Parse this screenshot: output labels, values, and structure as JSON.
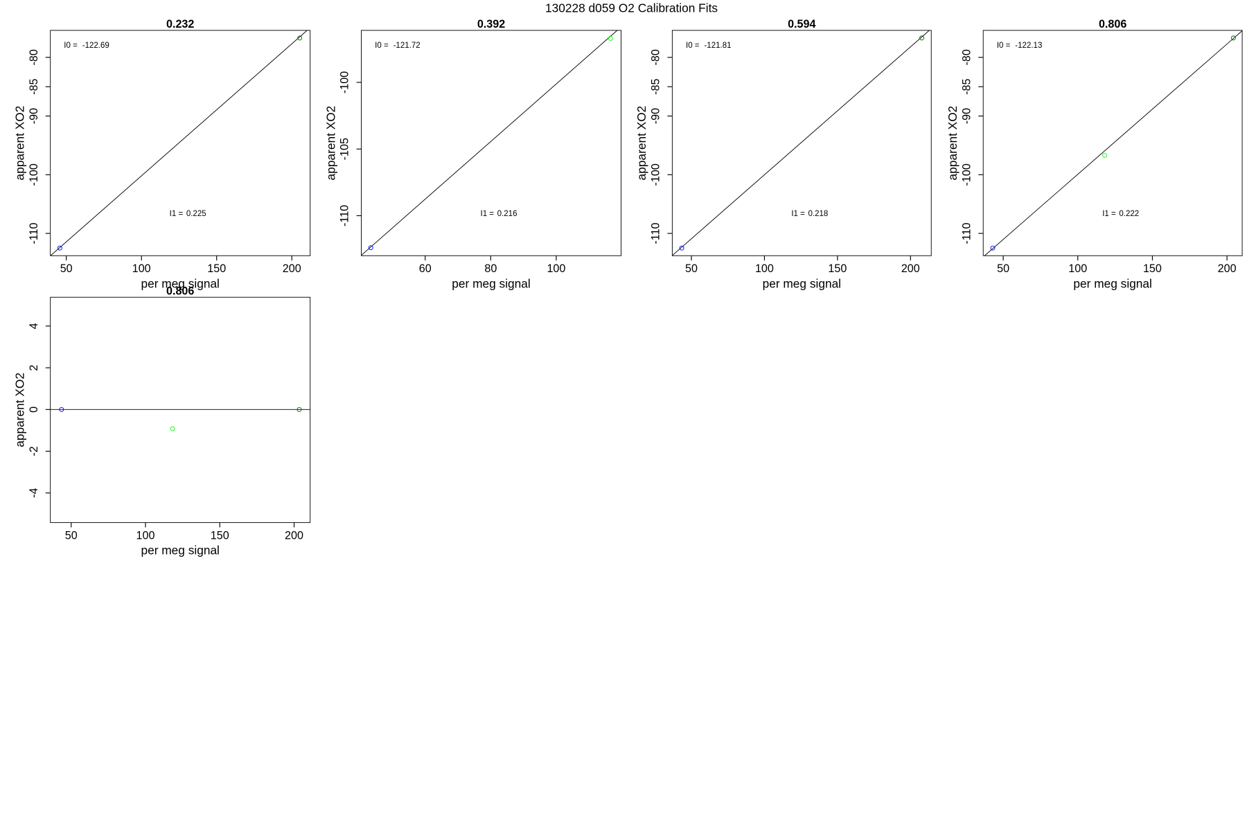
{
  "title": "130228   d059   O2 Calibration Fits",
  "chart_data": [
    {
      "type": "scatter",
      "title": "0.232",
      "x_label": "per meg signal",
      "y_label": "apparent XO2",
      "x": [
        45.7,
        205.3
      ],
      "values": [
        -112.5,
        -76.7
      ],
      "point_colors": [
        "#0000ff",
        "#006400"
      ],
      "fit": {
        "intercept_label": "I0 =",
        "intercept": -122.69,
        "slope_label": "I1 =",
        "slope": 0.225
      },
      "xlim": [
        39.4,
        212.2
      ],
      "xticks": [
        50,
        100,
        150,
        200
      ],
      "ylim": [
        -113.8,
        -75.4
      ],
      "yticks": [
        -80,
        -85,
        -90,
        -100,
        -110
      ]
    },
    {
      "type": "scatter",
      "title": "0.392",
      "x_label": "per meg signal",
      "y_label": "apparent XO2",
      "x": [
        43.4,
        116.6
      ],
      "values": [
        -112.4,
        -96.7
      ],
      "point_colors": [
        "#0000ff",
        "#00ff00"
      ],
      "fit": {
        "intercept_label": "I0 =",
        "intercept": -121.72,
        "slope_label": "I1 =",
        "slope": 0.216
      },
      "xlim": [
        40.5,
        119.8
      ],
      "xticks": [
        60,
        80,
        100
      ],
      "ylim": [
        -113.0,
        -96.1
      ],
      "yticks": [
        -100,
        -105,
        -110
      ]
    },
    {
      "type": "scatter",
      "title": "0.594",
      "x_label": "per meg signal",
      "y_label": "apparent XO2",
      "x": [
        43.4,
        207.7
      ],
      "values": [
        -112.5,
        -76.7
      ],
      "point_colors": [
        "#0000ff",
        "#006400"
      ],
      "fit": {
        "intercept_label": "I0 =",
        "intercept": -121.81,
        "slope_label": "I1 =",
        "slope": 0.218
      },
      "xlim": [
        36.9,
        214.2
      ],
      "xticks": [
        50,
        100,
        150,
        200
      ],
      "ylim": [
        -113.8,
        -75.4
      ],
      "yticks": [
        -80,
        -85,
        -90,
        -100,
        -110
      ]
    },
    {
      "type": "scatter",
      "title": "0.806",
      "x_label": "per meg signal",
      "y_label": "apparent XO2",
      "x": [
        43.0,
        118.0,
        204.3
      ],
      "values": [
        -112.5,
        -96.7,
        -76.7
      ],
      "point_colors": [
        "#0000ff",
        "#00ff00",
        "#006400"
      ],
      "fit": {
        "intercept_label": "I0 =",
        "intercept": -122.13,
        "slope_label": "I1 =",
        "slope": 0.222
      },
      "xlim": [
        36.6,
        210.2
      ],
      "xticks": [
        50,
        100,
        150,
        200
      ],
      "ylim": [
        -113.8,
        -75.4
      ],
      "yticks": [
        -80,
        -85,
        -90,
        -100,
        -110
      ]
    },
    {
      "type": "scatter",
      "title": "0.806",
      "x_label": "per meg signal",
      "y_label": "apparent XO2",
      "x": [
        43.5,
        118.2,
        203.5
      ],
      "values": [
        0,
        -0.92,
        0
      ],
      "point_colors": [
        "#0000ff",
        "#00ff00",
        "#006400"
      ],
      "hline": 0,
      "xlim": [
        36.0,
        210.8
      ],
      "xticks": [
        50,
        100,
        150,
        200
      ],
      "ylim": [
        -5.42,
        5.38
      ],
      "yticks": [
        4,
        2,
        0,
        -2,
        -4
      ]
    }
  ]
}
